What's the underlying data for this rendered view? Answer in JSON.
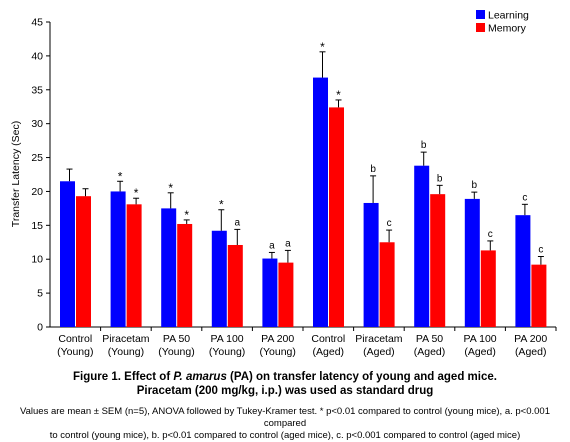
{
  "chart_data": {
    "type": "bar",
    "ylabel": "Transfer Latency (Sec)",
    "ylim": [
      0,
      45
    ],
    "yticks": [
      0,
      5,
      10,
      15,
      20,
      25,
      30,
      35,
      40,
      45
    ],
    "grid": false,
    "legend_position": "top-right",
    "categories": [
      [
        "Control",
        "(Young)"
      ],
      [
        "Piracetam",
        "(Young)"
      ],
      [
        "PA 50",
        "(Young)"
      ],
      [
        "PA 100",
        "(Young)"
      ],
      [
        "PA 200",
        "(Young)"
      ],
      [
        "Control",
        "(Aged)"
      ],
      [
        "Piracetam",
        "(Aged)"
      ],
      [
        "PA 50",
        "(Aged)"
      ],
      [
        "PA 100",
        "(Aged)"
      ],
      [
        "PA 200",
        "(Aged)"
      ]
    ],
    "series": [
      {
        "name": "Learning",
        "color": "#0000ff",
        "values": [
          21.5,
          20.0,
          17.5,
          14.2,
          10.1,
          36.8,
          18.3,
          23.8,
          18.9,
          16.5
        ],
        "errors": [
          1.8,
          1.5,
          2.3,
          3.1,
          0.9,
          3.8,
          4.0,
          2.0,
          1.0,
          1.6
        ],
        "labels": [
          "",
          "*",
          "*",
          "*",
          "a",
          "*",
          "b",
          "b",
          "b",
          "c"
        ]
      },
      {
        "name": "Memory",
        "color": "#ff0000",
        "values": [
          19.3,
          18.1,
          15.2,
          12.1,
          9.5,
          32.4,
          12.5,
          19.6,
          11.3,
          9.2
        ],
        "errors": [
          1.1,
          0.9,
          0.6,
          2.3,
          1.8,
          1.1,
          1.8,
          1.3,
          1.4,
          1.2
        ],
        "labels": [
          "",
          "*",
          "*",
          "a",
          "a",
          "*",
          "c",
          "b",
          "c",
          "c"
        ]
      }
    ]
  },
  "caption": {
    "line1_prefix": "Figure 1. Effect of ",
    "line1_species": "P. amarus",
    "line1_suffix": " (PA) on transfer latency of young and aged mice.",
    "line2": "Piracetam (200 mg/kg, i.p.) was used as standard drug"
  },
  "footnote": {
    "line1": "Values are mean ± SEM (n=5), ANOVA followed by Tukey-Kramer test. * p<0.01 compared to control (young mice), a. p<0.001 compared",
    "line2": "to control (young mice), b. p<0.01 compared to control (aged mice), c. p<0.001 compared to control (aged mice)"
  }
}
